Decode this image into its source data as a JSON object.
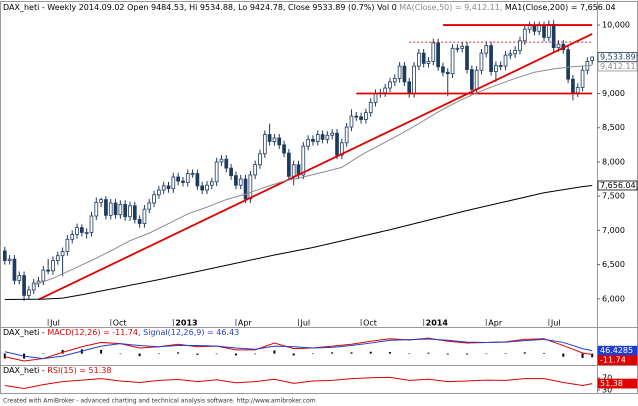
{
  "chart_data": [
    {
      "type": "candlestick",
      "title": "DAX_heti - Weekly 2014.09.02  Open 9484.53, Hi 9534.88, Lo 9424.78, Close 9533.89 (0.7%) Vol 0",
      "xlim": [
        -1,
        123
      ],
      "xticks": [
        {
          "value": 9,
          "label": "Jul"
        },
        {
          "value": 22,
          "label": "Oct"
        },
        {
          "value": 35,
          "label": "2013"
        },
        {
          "value": 48,
          "label": "Apr"
        },
        {
          "value": 61,
          "label": "Jul"
        },
        {
          "value": 74,
          "label": "Oct"
        },
        {
          "value": 87,
          "label": "2014"
        },
        {
          "value": 100,
          "label": "Apr"
        },
        {
          "value": 113,
          "label": "Jul"
        }
      ],
      "ylim": [
        5720,
        10220
      ],
      "yticks": [
        {
          "value": 6000,
          "label": "6,000"
        },
        {
          "value": 6500,
          "label": "6,500"
        },
        {
          "value": 7000,
          "label": "7,000"
        },
        {
          "value": 7500,
          "label": "7,500"
        },
        {
          "value": 8000,
          "label": "8,000"
        },
        {
          "value": 8500,
          "label": "8,500"
        },
        {
          "value": 9000,
          "label": "9,000"
        },
        {
          "value": 9500,
          "label": "9,500"
        },
        {
          "value": 10000,
          "label": "10,000"
        }
      ],
      "candles": {
        "up_color": "#ffffff",
        "down_color": "#1f3a5f",
        "last_label": "9,533.89",
        "open": [
          6700,
          6560,
          6580,
          6270,
          6340,
          6050,
          6130,
          6230,
          6260,
          6420,
          6410,
          6560,
          6630,
          6690,
          6870,
          6940,
          7040,
          6970,
          6970,
          7210,
          7410,
          7450,
          7220,
          7400,
          7230,
          7380,
          7200,
          7360,
          7160,
          7100,
          7310,
          7400,
          7520,
          7590,
          7650,
          7610,
          7780,
          7720,
          7700,
          7830,
          7830,
          7650,
          7590,
          7660,
          7710,
          8000,
          8040,
          7910,
          7800,
          7660,
          7750,
          7460,
          7810,
          7960,
          8120,
          8400,
          8300,
          8350,
          8250,
          8130,
          7790,
          7960,
          7810,
          8230,
          8330,
          8300,
          8400,
          8330,
          8390,
          8420,
          8100,
          8280,
          8510,
          8670,
          8660,
          8620,
          8720,
          8870,
          9000,
          9010,
          9080,
          9170,
          9220,
          9400,
          9170,
          9000,
          9400,
          9590,
          9440,
          9470,
          9740,
          9390,
          9310,
          9290,
          9660,
          9660,
          9690,
          9350,
          9060,
          9340,
          9590,
          9700,
          9320,
          9410,
          9400,
          9560,
          9580,
          9630,
          9770,
          9940,
          9990,
          9910,
          9990,
          9820,
          10010,
          9670,
          9720,
          9640,
          9210,
          9010,
          9090,
          9340,
          9484.53
        ],
        "high": [
          6760,
          6640,
          6640,
          6400,
          6400,
          6190,
          6290,
          6320,
          6480,
          6580,
          6620,
          6690,
          6750,
          6930,
          7000,
          7100,
          7090,
          7030,
          7270,
          7480,
          7480,
          7500,
          7460,
          7460,
          7440,
          7440,
          7420,
          7420,
          7220,
          7370,
          7460,
          7580,
          7650,
          7710,
          7710,
          7840,
          7840,
          7780,
          7890,
          7890,
          7890,
          7710,
          7720,
          7770,
          8060,
          8100,
          8100,
          7970,
          7860,
          7810,
          7810,
          7870,
          8020,
          8180,
          8460,
          8560,
          8410,
          8410,
          8310,
          8190,
          8020,
          8020,
          8290,
          8390,
          8390,
          8460,
          8460,
          8450,
          8480,
          8480,
          8340,
          8570,
          8770,
          8730,
          8720,
          8780,
          8930,
          9060,
          9070,
          9140,
          9230,
          9280,
          9460,
          9460,
          9230,
          9460,
          9650,
          9650,
          9530,
          9800,
          9800,
          9450,
          9370,
          9720,
          9720,
          9750,
          9750,
          9410,
          9400,
          9650,
          9760,
          9760,
          9470,
          9470,
          9620,
          9640,
          9690,
          9830,
          10000,
          10050,
          10050,
          10050,
          10050,
          10070,
          10070,
          9780,
          9780,
          9700,
          9270,
          9150,
          9400,
          9530,
          9534.88
        ],
        "low": [
          6500,
          6500,
          6210,
          6210,
          5970,
          5990,
          6070,
          6170,
          6200,
          6360,
          6350,
          6500,
          6330,
          6630,
          6810,
          6880,
          6910,
          6880,
          6910,
          7150,
          7340,
          7160,
          7160,
          7170,
          7170,
          7140,
          7140,
          7100,
          7040,
          7040,
          7250,
          7340,
          7460,
          7530,
          7550,
          7550,
          7660,
          7640,
          7640,
          7770,
          7590,
          7530,
          7530,
          7600,
          7650,
          7940,
          7850,
          7740,
          7600,
          7600,
          7400,
          7400,
          7750,
          7900,
          8060,
          8240,
          8240,
          8190,
          8070,
          7730,
          7660,
          7750,
          7750,
          8170,
          8240,
          8240,
          8270,
          8270,
          8330,
          8040,
          8040,
          8220,
          8450,
          8600,
          8560,
          8560,
          8660,
          8810,
          8940,
          8950,
          9020,
          9110,
          9160,
          9110,
          8940,
          8940,
          9340,
          9380,
          9380,
          9410,
          9330,
          9250,
          8960,
          9230,
          9600,
          9600,
          9290,
          9000,
          9000,
          9280,
          9530,
          9260,
          9170,
          9340,
          9340,
          9500,
          9520,
          9570,
          9710,
          9880,
          9850,
          9850,
          9760,
          9760,
          9610,
          9610,
          9580,
          9150,
          8900,
          8950,
          9030,
          9280,
          9424.78
        ],
        "close": [
          6560,
          6580,
          6270,
          6340,
          6050,
          6130,
          6230,
          6260,
          6420,
          6410,
          6560,
          6630,
          6690,
          6870,
          6940,
          7040,
          6970,
          6970,
          7210,
          7410,
          7450,
          7220,
          7400,
          7230,
          7380,
          7200,
          7360,
          7160,
          7100,
          7310,
          7400,
          7520,
          7590,
          7650,
          7610,
          7780,
          7720,
          7700,
          7830,
          7830,
          7650,
          7590,
          7660,
          7710,
          8000,
          8040,
          7910,
          7800,
          7660,
          7750,
          7460,
          7810,
          7960,
          8120,
          8400,
          8300,
          8350,
          8250,
          8130,
          7790,
          7960,
          7810,
          8230,
          8330,
          8300,
          8400,
          8330,
          8390,
          8420,
          8100,
          8280,
          8510,
          8670,
          8660,
          8620,
          8720,
          8870,
          9000,
          9010,
          9080,
          9170,
          9220,
          9400,
          9170,
          9000,
          9400,
          9590,
          9440,
          9470,
          9740,
          9390,
          9310,
          9290,
          9660,
          9660,
          9690,
          9350,
          9060,
          9340,
          9590,
          9700,
          9320,
          9410,
          9400,
          9560,
          9580,
          9630,
          9770,
          9940,
          9990,
          9910,
          9990,
          9820,
          10010,
          9670,
          9720,
          9640,
          9210,
          9010,
          9090,
          9340,
          9470,
          9533.89
        ]
      },
      "series": [
        {
          "name": "MA(Close,50) = 9,412.11,",
          "color": "#8c8c8c",
          "last_label": "9,412.11",
          "x": [
            6,
            10,
            14,
            18,
            22,
            26,
            30,
            34,
            38,
            42,
            46,
            50,
            54,
            58,
            62,
            66,
            70,
            74,
            78,
            82,
            86,
            90,
            94,
            98,
            102,
            106,
            110,
            114,
            118,
            122
          ],
          "values": [
            6200,
            6300,
            6430,
            6560,
            6700,
            6850,
            6960,
            7100,
            7240,
            7340,
            7450,
            7530,
            7630,
            7720,
            7780,
            7850,
            7920,
            8100,
            8250,
            8400,
            8560,
            8730,
            8880,
            9010,
            9120,
            9220,
            9310,
            9360,
            9390,
            9412.11
          ]
        },
        {
          "name": "MA1(Close,200) = 7,656.04",
          "color": "#000000",
          "last_label": "7,656.04",
          "x": [
            0,
            8,
            12,
            16,
            24,
            32,
            40,
            48,
            56,
            64,
            72,
            80,
            88,
            96,
            104,
            112,
            120,
            122
          ],
          "values": [
            5990,
            5995,
            6010,
            6060,
            6170,
            6280,
            6400,
            6520,
            6640,
            6750,
            6880,
            7010,
            7150,
            7290,
            7420,
            7550,
            7640,
            7656.04
          ]
        }
      ],
      "lines": [
        {
          "x": [
            7,
            122
          ],
          "y": [
            5990,
            9870
          ],
          "color": "#e00000",
          "dashed": false
        },
        {
          "x": [
            91,
            122
          ],
          "y": [
            10000,
            10000
          ],
          "color": "#e00000",
          "dashed": false
        },
        {
          "x": [
            73,
            122
          ],
          "y": [
            9000,
            9000
          ],
          "color": "#e00000",
          "dashed": false
        },
        {
          "x": [
            84,
            122
          ],
          "y": [
            9750,
            9750
          ],
          "color": "#b03030",
          "dashed": true
        }
      ]
    },
    {
      "type": "macd",
      "title": "DAX_heti -",
      "xlim": [
        -1,
        123
      ],
      "ylim": [
        -200,
        300
      ],
      "series": [
        {
          "name": "MACD(12,26) = -11.74,",
          "color": "#e00000",
          "last_label": "-11.74",
          "x": [
            0,
            4,
            8,
            12,
            16,
            20,
            24,
            28,
            32,
            36,
            40,
            44,
            48,
            52,
            56,
            60,
            64,
            68,
            72,
            76,
            80,
            84,
            88,
            92,
            96,
            100,
            104,
            108,
            112,
            116,
            120,
            122
          ],
          "values": [
            -50,
            -120,
            -80,
            20,
            110,
            180,
            160,
            90,
            110,
            150,
            110,
            120,
            60,
            60,
            170,
            80,
            90,
            120,
            150,
            200,
            240,
            220,
            250,
            200,
            170,
            180,
            190,
            230,
            240,
            130,
            10,
            -11.74
          ]
        },
        {
          "name": "Signal(12,26,9) = 46.43",
          "color": "#1f3fd0",
          "last_label": "46.4285",
          "x": [
            0,
            4,
            8,
            12,
            16,
            20,
            24,
            28,
            32,
            36,
            40,
            44,
            48,
            52,
            56,
            60,
            64,
            68,
            72,
            76,
            80,
            84,
            88,
            92,
            96,
            100,
            104,
            108,
            112,
            116,
            120,
            122
          ],
          "values": [
            30,
            -40,
            -80,
            -40,
            40,
            120,
            160,
            130,
            110,
            130,
            130,
            120,
            90,
            70,
            120,
            110,
            90,
            100,
            130,
            170,
            215,
            225,
            235,
            215,
            185,
            180,
            185,
            210,
            230,
            180,
            80,
            46.43
          ]
        }
      ],
      "histogram": {
        "color": "#000000",
        "x": [
          0,
          4,
          8,
          12,
          16,
          20,
          24,
          28,
          32,
          36,
          40,
          44,
          48,
          52,
          56,
          60,
          64,
          68,
          72,
          76,
          80,
          84,
          88,
          92,
          96,
          100,
          104,
          108,
          112,
          116,
          120,
          122
        ],
        "values": [
          -80,
          -80,
          0,
          60,
          70,
          60,
          0,
          -40,
          0,
          20,
          -20,
          0,
          -30,
          -10,
          50,
          -30,
          0,
          20,
          20,
          30,
          25,
          -5,
          15,
          -15,
          -15,
          0,
          5,
          20,
          10,
          -50,
          -70,
          -58.17
        ]
      }
    },
    {
      "type": "line",
      "title": "DAX_heti -",
      "xlim": [
        -1,
        123
      ],
      "ylim": [
        20,
        100
      ],
      "yticks": [
        30,
        70
      ],
      "series": [
        {
          "name": "RSI(15) = 51.38",
          "color": "#e00000",
          "last_label": "51.38",
          "x": [
            0,
            4,
            8,
            12,
            16,
            20,
            24,
            28,
            32,
            36,
            40,
            44,
            48,
            52,
            56,
            60,
            64,
            68,
            72,
            76,
            80,
            84,
            88,
            92,
            96,
            100,
            104,
            108,
            112,
            116,
            120,
            122
          ],
          "values": [
            45,
            35,
            48,
            58,
            63,
            68,
            60,
            55,
            62,
            65,
            58,
            64,
            54,
            58,
            66,
            52,
            60,
            62,
            68,
            71,
            72,
            62,
            66,
            58,
            60,
            63,
            62,
            68,
            68,
            55,
            45,
            51.38
          ]
        }
      ]
    }
  ],
  "footer": "Created with AmiBroker - advanced charting and technical analysis software. http://www.amibroker.com"
}
